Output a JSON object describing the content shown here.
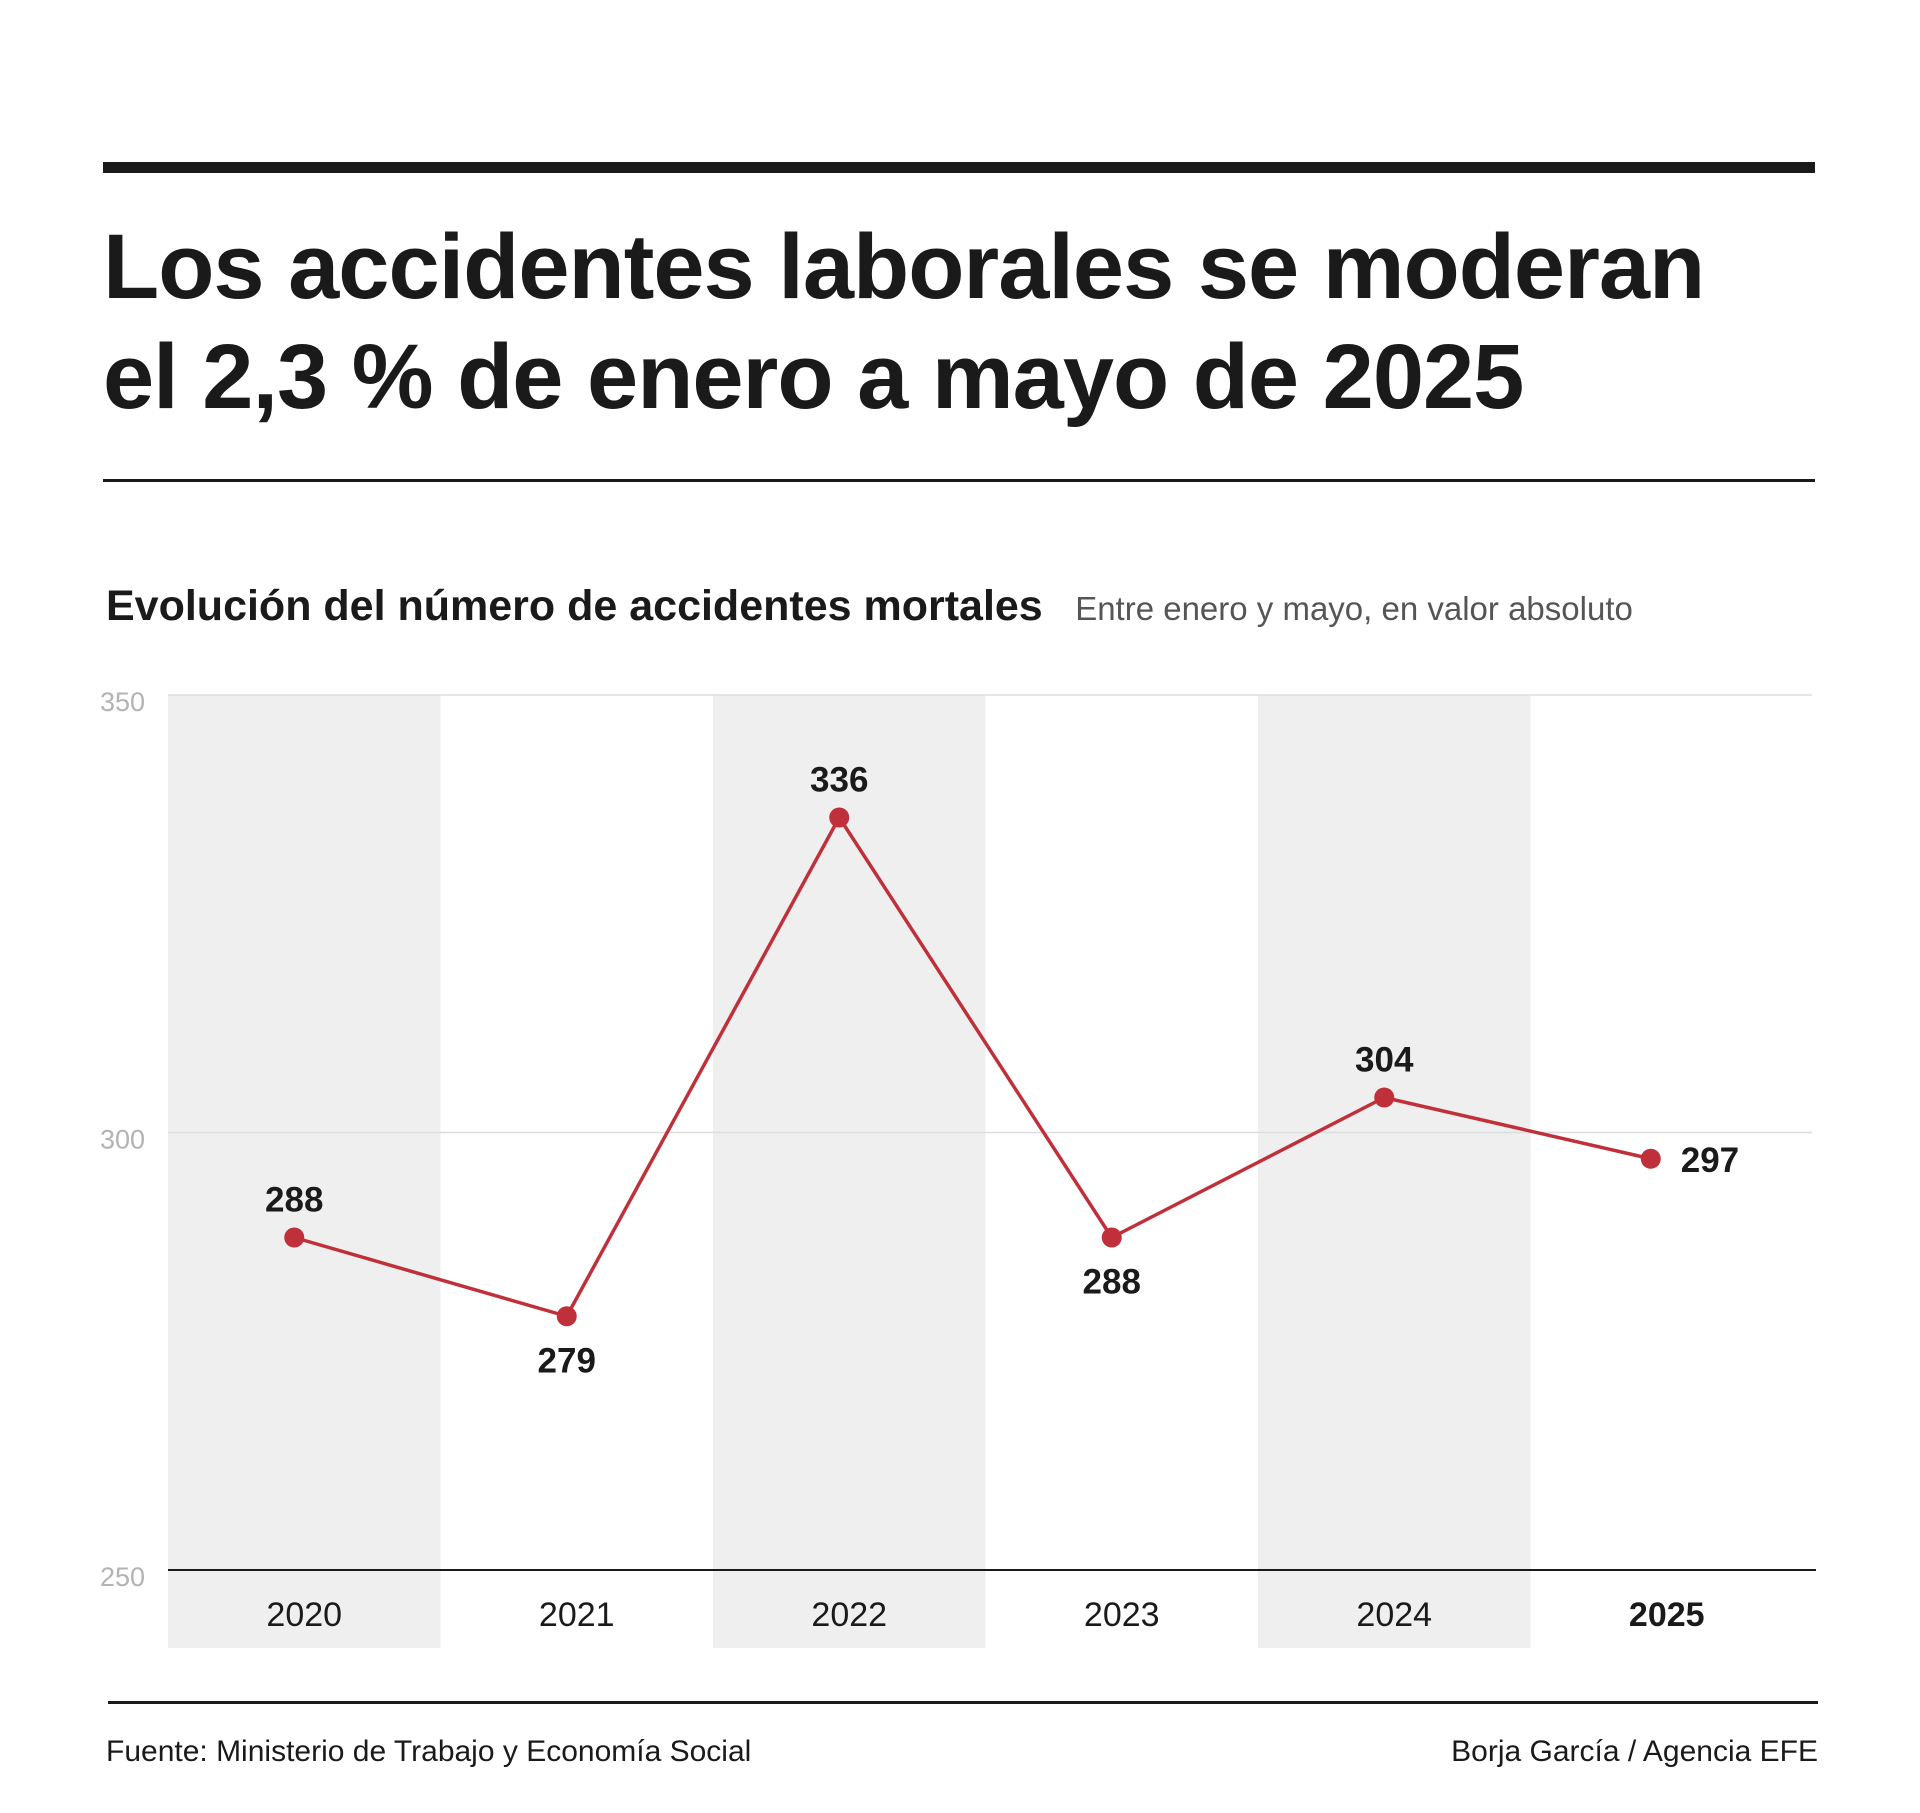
{
  "header": {
    "title": "Los accidentes laborales se moderan el 2,3 % de enero a mayo de 2025"
  },
  "chart_data": {
    "type": "line",
    "title": "Evolución del número de accidentes mortales",
    "subtitle": "Entre enero y mayo, en valor absoluto",
    "categories": [
      "2020",
      "2021",
      "2022",
      "2023",
      "2024",
      "2025"
    ],
    "series": [
      {
        "values": [
          288,
          279,
          336,
          288,
          304,
          297
        ]
      }
    ],
    "data_labels": [
      "288",
      "279",
      "336",
      "288",
      "304",
      "297"
    ],
    "y_ticks": [
      "250",
      "300",
      "350"
    ],
    "ylim": [
      250,
      350
    ],
    "grid": true,
    "alternating_column_shading": true,
    "highlighted_category": "2025",
    "colors": {
      "line": "#c0303a",
      "shading": "#efefef",
      "text": "#1a1a1a",
      "tick": "#b3b3b3"
    }
  },
  "footer": {
    "source": "Fuente: Ministerio de Trabajo y Economía Social",
    "credit": "Borja García / Agencia EFE"
  }
}
